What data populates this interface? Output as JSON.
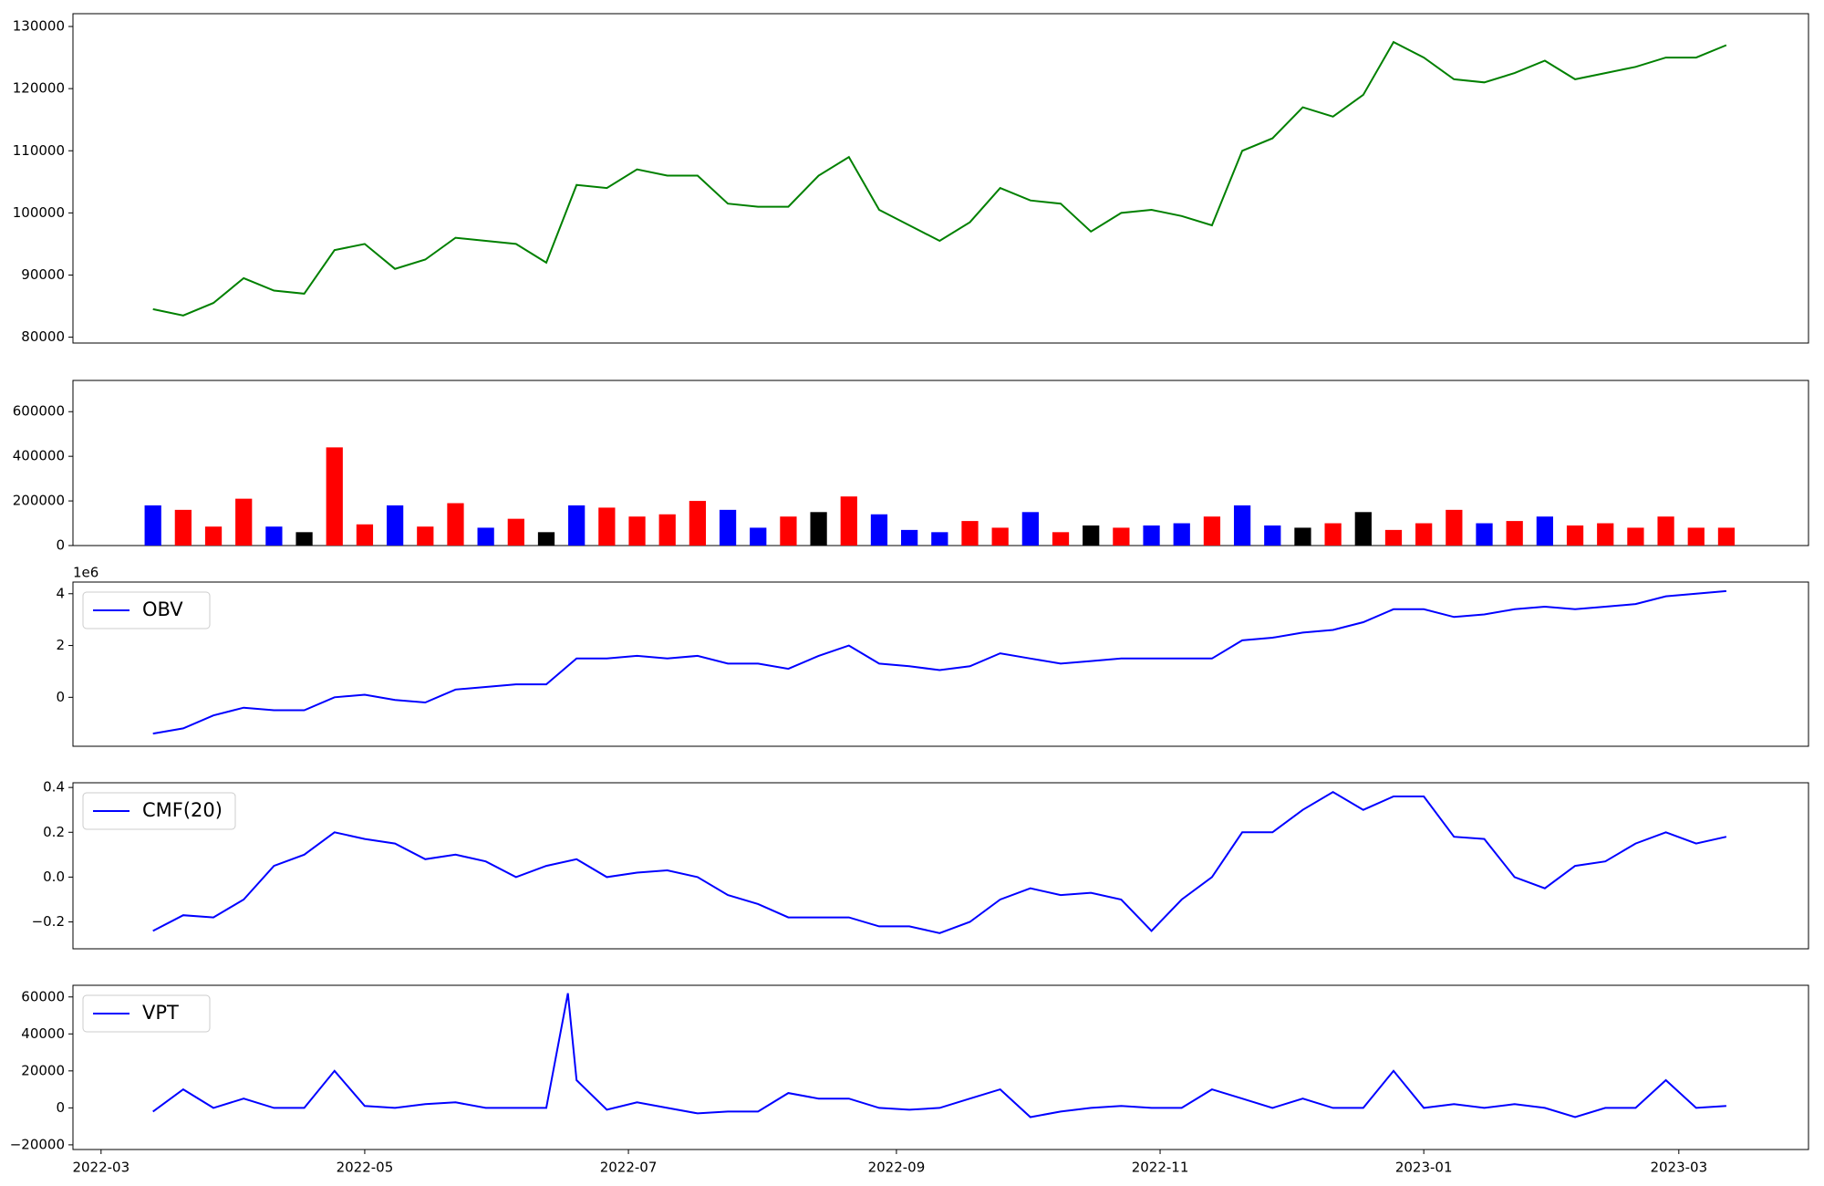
{
  "chart_data": [
    {
      "type": "line",
      "color": "green",
      "x": [
        12,
        19,
        26,
        33,
        40,
        47,
        54,
        61,
        68,
        75,
        82,
        89,
        96,
        103,
        110,
        117,
        124,
        131,
        138,
        145,
        152,
        159,
        166,
        173,
        180,
        187,
        194,
        201,
        208,
        215,
        222,
        229,
        236,
        243,
        250,
        257,
        264,
        271,
        278,
        285,
        292,
        299,
        306,
        313,
        320,
        327,
        334,
        341,
        348,
        355,
        362,
        369,
        376
      ],
      "values": [
        84500,
        83500,
        85500,
        89500,
        87500,
        87000,
        94000,
        95000,
        91000,
        92500,
        96000,
        95500,
        95000,
        92000,
        104500,
        104000,
        107000,
        106000,
        106000,
        101500,
        101000,
        101000,
        106000,
        109000,
        100500,
        98000,
        95500,
        98500,
        104000,
        102000,
        101500,
        97000,
        100000,
        100500,
        99500,
        98000,
        110000,
        112000,
        117000,
        115500,
        119000,
        127500,
        125000,
        121500,
        121000,
        122500,
        124500,
        121500,
        122500,
        123500,
        125000,
        125000,
        127000
      ],
      "xlim": [
        -6.5,
        395
      ],
      "ylim": [
        79060,
        132060
      ],
      "yticks": [
        80000,
        90000,
        100000,
        110000,
        120000,
        130000
      ]
    },
    {
      "type": "bar",
      "x": [
        12,
        19,
        26,
        33,
        40,
        47,
        54,
        61,
        68,
        75,
        82,
        89,
        96,
        103,
        110,
        117,
        124,
        131,
        138,
        145,
        152,
        159,
        166,
        173,
        180,
        187,
        194,
        201,
        208,
        215,
        222,
        229,
        236,
        243,
        250,
        257,
        264,
        271,
        278,
        285,
        292,
        299,
        306,
        313,
        320,
        327,
        334,
        341,
        348,
        355,
        362,
        369,
        376
      ],
      "values": [
        180000,
        160000,
        85000,
        210000,
        85000,
        60000,
        440000,
        95000,
        180000,
        85000,
        190000,
        80000,
        120000,
        60000,
        180000,
        170000,
        130000,
        140000,
        200000,
        160000,
        80000,
        130000,
        150000,
        220000,
        140000,
        70000,
        60000,
        110000,
        80000,
        150000,
        60000,
        90000,
        80000,
        90000,
        100000,
        130000,
        180000,
        90000,
        80000,
        100000,
        150000,
        70000,
        100000,
        160000,
        100000,
        110000,
        130000,
        90000,
        100000,
        80000,
        130000,
        80000,
        80000
      ],
      "colors": [
        "blue",
        "red",
        "red",
        "red",
        "blue",
        "black",
        "red",
        "red",
        "blue",
        "red",
        "red",
        "blue",
        "red",
        "black",
        "blue",
        "red",
        "red",
        "red",
        "red",
        "blue",
        "blue",
        "red",
        "black",
        "red",
        "blue",
        "blue",
        "blue",
        "red",
        "red",
        "blue",
        "red",
        "black",
        "red",
        "blue",
        "blue",
        "red",
        "blue",
        "blue",
        "black",
        "red",
        "black",
        "red",
        "red",
        "red",
        "blue",
        "red",
        "blue",
        "red",
        "red",
        "red",
        "red",
        "red",
        "red"
      ],
      "xlim": [
        -6.5,
        395
      ],
      "ylim": [
        0,
        740000
      ],
      "yticks": [
        0,
        200000,
        400000,
        600000
      ]
    },
    {
      "type": "line",
      "x": [
        12,
        19,
        26,
        33,
        40,
        47,
        54,
        61,
        68,
        75,
        82,
        89,
        96,
        103,
        110,
        117,
        124,
        131,
        138,
        145,
        152,
        159,
        166,
        173,
        180,
        187,
        194,
        201,
        208,
        215,
        222,
        229,
        236,
        243,
        250,
        257,
        264,
        271,
        278,
        285,
        292,
        299,
        306,
        313,
        320,
        327,
        334,
        341,
        348,
        355,
        362,
        369,
        376
      ],
      "series": [
        {
          "name": "OBV",
          "color": "blue",
          "values": [
            -1.4,
            -1.2,
            -0.7,
            -0.4,
            -0.5,
            -0.5,
            0.0,
            0.1,
            -0.1,
            -0.2,
            0.3,
            0.4,
            0.5,
            0.5,
            1.5,
            1.5,
            1.6,
            1.5,
            1.6,
            1.3,
            1.3,
            1.1,
            1.6,
            2.0,
            1.3,
            1.2,
            1.05,
            1.2,
            1.7,
            1.5,
            1.3,
            1.4,
            1.5,
            1.5,
            1.5,
            1.5,
            2.2,
            2.3,
            2.5,
            2.6,
            2.9,
            3.4,
            3.4,
            3.1,
            3.2,
            3.4,
            3.5,
            3.4,
            3.5,
            3.6,
            3.9,
            4.0,
            4.1
          ]
        }
      ],
      "offset_label": "1e6",
      "legend": "upper left",
      "xlim": [
        -6.5,
        395
      ],
      "ylim": [
        -1.89,
        4.45
      ],
      "yticks": [
        0,
        2,
        4
      ]
    },
    {
      "type": "line",
      "x": [
        12,
        19,
        26,
        33,
        40,
        47,
        54,
        61,
        68,
        75,
        82,
        89,
        96,
        103,
        110,
        117,
        124,
        131,
        138,
        145,
        152,
        159,
        166,
        173,
        180,
        187,
        194,
        201,
        208,
        215,
        222,
        229,
        236,
        243,
        250,
        257,
        264,
        271,
        278,
        285,
        292,
        299,
        306,
        313,
        320,
        327,
        334,
        341,
        348,
        355,
        362,
        369,
        376
      ],
      "series": [
        {
          "name": "CMF(20)",
          "color": "blue",
          "values": [
            -0.24,
            -0.17,
            -0.18,
            -0.1,
            0.05,
            0.1,
            0.2,
            0.17,
            0.15,
            0.08,
            0.1,
            0.07,
            0.0,
            0.05,
            0.08,
            0.0,
            0.02,
            0.03,
            0.0,
            -0.08,
            -0.12,
            -0.18,
            -0.18,
            -0.18,
            -0.22,
            -0.22,
            -0.25,
            -0.2,
            -0.1,
            -0.05,
            -0.08,
            -0.07,
            -0.1,
            -0.24,
            -0.1,
            0.0,
            0.2,
            0.2,
            0.3,
            0.38,
            0.3,
            0.36,
            0.36,
            0.18,
            0.17,
            0.0,
            -0.05,
            0.05,
            0.07,
            0.15,
            0.2,
            0.15,
            0.18
          ]
        }
      ],
      "legend": "upper left",
      "xlim": [
        -6.5,
        395
      ],
      "ylim": [
        -0.32,
        0.421
      ],
      "yticks": [
        {
          "value": -0.2,
          "label": "−0.2"
        },
        {
          "value": 0,
          "label": "0.0"
        },
        0.2,
        0.4
      ]
    },
    {
      "type": "line",
      "x": [
        12,
        19,
        26,
        33,
        40,
        47,
        54,
        61,
        68,
        75,
        82,
        89,
        96,
        103,
        108,
        110,
        117,
        124,
        131,
        138,
        145,
        152,
        159,
        166,
        173,
        180,
        187,
        194,
        201,
        208,
        215,
        222,
        229,
        236,
        243,
        250,
        257,
        264,
        271,
        278,
        285,
        292,
        299,
        306,
        313,
        320,
        327,
        334,
        341,
        348,
        355,
        362,
        369,
        376
      ],
      "series": [
        {
          "name": "VPT",
          "color": "blue",
          "values": [
            -2000,
            10000,
            0,
            5000,
            0,
            0,
            20000,
            1000,
            0,
            2000,
            3000,
            0,
            0,
            0,
            62000,
            15000,
            -1000,
            3000,
            0,
            -3000,
            -2000,
            -2000,
            8000,
            5000,
            5000,
            0,
            -1000,
            0,
            5000,
            10000,
            -5000,
            -2000,
            0,
            1000,
            0,
            0,
            10000,
            5000,
            0,
            5000,
            0,
            0,
            20000,
            0,
            2000,
            0,
            2000,
            0,
            -5000,
            0,
            0,
            15000,
            0,
            1000
          ]
        }
      ],
      "legend": "upper left",
      "xlim": [
        -6.5,
        395
      ],
      "ylim": [
        -22520,
        66300
      ],
      "yticks": [
        {
          "value": -20000,
          "label": "−20000"
        },
        0,
        20000,
        40000,
        60000
      ],
      "xticks": [
        {
          "value": 0,
          "label": "2022-03"
        },
        {
          "value": 61,
          "label": "2022-05"
        },
        {
          "value": 122,
          "label": "2022-07"
        },
        {
          "value": 184,
          "label": "2022-09"
        },
        {
          "value": 245,
          "label": "2022-11"
        },
        {
          "value": 306,
          "label": "2023-01"
        },
        {
          "value": 365,
          "label": "2023-03"
        }
      ]
    }
  ]
}
